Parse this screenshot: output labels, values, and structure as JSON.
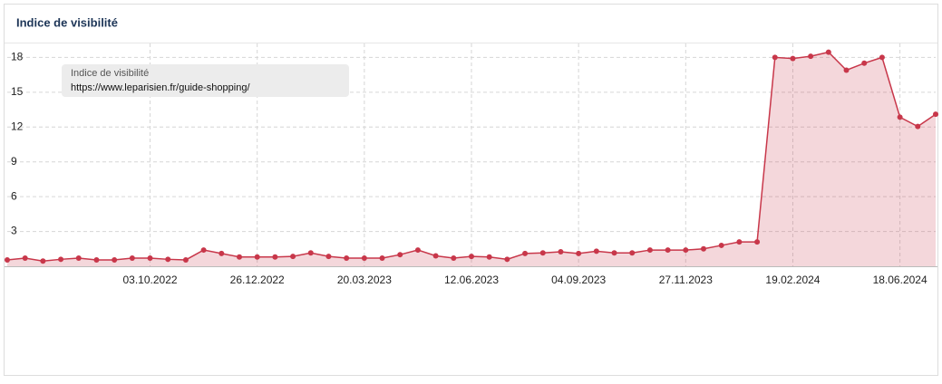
{
  "chart_data": {
    "type": "area",
    "title": "Indice de visibilité",
    "tooltip": {
      "title": "Indice de visibilité",
      "subtitle": "https://www.leparisien.fr/guide-shopping/"
    },
    "categories": [
      null,
      null,
      null,
      null,
      null,
      null,
      null,
      null,
      "03.10.2022",
      null,
      null,
      null,
      null,
      null,
      "26.12.2022",
      null,
      null,
      null,
      null,
      null,
      "20.03.2023",
      null,
      null,
      null,
      null,
      null,
      "12.06.2023",
      null,
      null,
      null,
      null,
      null,
      "04.09.2023",
      null,
      null,
      null,
      null,
      null,
      "27.11.2023",
      null,
      null,
      null,
      null,
      null,
      "19.02.2024",
      null,
      null,
      null,
      null,
      null,
      "18.06.2024",
      null,
      null
    ],
    "series": [
      {
        "name": "Indice de visibilité",
        "color": "#c8374a",
        "values": [
          0.55,
          0.7,
          0.45,
          0.6,
          0.7,
          0.55,
          0.55,
          0.7,
          0.7,
          0.6,
          0.55,
          1.4,
          1.1,
          0.8,
          0.8,
          0.8,
          0.85,
          1.15,
          0.85,
          0.7,
          0.7,
          0.7,
          1.0,
          1.4,
          0.9,
          0.7,
          0.85,
          0.8,
          0.6,
          1.1,
          1.15,
          1.25,
          1.1,
          1.3,
          1.15,
          1.15,
          1.4,
          1.4,
          1.4,
          1.5,
          1.8,
          2.1,
          2.1,
          18.0,
          17.9,
          18.1,
          18.45,
          16.9,
          17.5,
          18.0,
          12.85,
          12.05,
          13.1
        ]
      }
    ],
    "ylim": [
      0,
      19.2
    ],
    "yticks": [
      3,
      6,
      9,
      12,
      15,
      18
    ],
    "grid": true
  }
}
